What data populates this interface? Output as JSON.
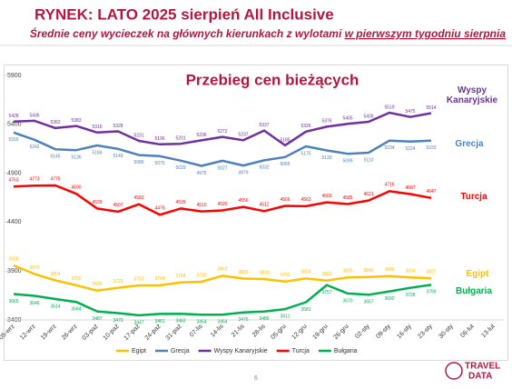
{
  "header": {
    "title": "RYNEK: LATO 2025 sierpień All Inclusive",
    "subtitle": "Średnie ceny wycieczek na głównych kierunkach z wylotami",
    "subtitle_emphasis": "w pierwszym tygodniu sierpnia"
  },
  "chart_data": {
    "type": "line",
    "title": "Przebieg cen bieżących",
    "categories": [
      "05-wrz",
      "12-wrz",
      "19-wrz",
      "26-wrz",
      "03-paź",
      "10-paź",
      "17-paź",
      "24-paź",
      "31-paź",
      "07-lis",
      "14-lis",
      "21-lis",
      "28-lis",
      "05-gru",
      "12-gru",
      "19-gru",
      "26-gru",
      "02-sty",
      "09-sty",
      "16-sty",
      "23-sty",
      "30-sty",
      "06-lut",
      "13-lut"
    ],
    "series": [
      {
        "name": "Egipt",
        "color": "#ffc000",
        "values": [
          3958,
          3870,
          3804,
          3755,
          3699,
          3729,
          3753,
          3754,
          3784,
          3790,
          3852,
          3823,
          3818,
          3792,
          3824,
          3802,
          3835,
          3840,
          3849,
          3834,
          3827,
          null,
          null,
          null
        ]
      },
      {
        "name": "Grecja",
        "color": "#4f81bd",
        "values": [
          5316,
          5242,
          5145,
          5136,
          5184,
          5149,
          5086,
          5075,
          5029,
          4975,
          5027,
          4979,
          5032,
          5065,
          5175,
          5133,
          5099,
          5110,
          5234,
          5224,
          5233,
          null,
          null,
          null
        ]
      },
      {
        "name": "Wyspy Kanaryjskie",
        "color": "#7030a0",
        "values": [
          5428,
          5436,
          5362,
          5383,
          5316,
          5328,
          5231,
          5196,
          5201,
          5236,
          5272,
          5237,
          5337,
          5185,
          5326,
          5376,
          5405,
          5426,
          5519,
          5475,
          5514,
          null,
          null,
          null
        ]
      },
      {
        "name": "Turcja",
        "color": "#ff0000",
        "values": [
          4763,
          4773,
          4775,
          4690,
          4539,
          4507,
          4583,
          4475,
          4539,
          4510,
          4520,
          4556,
          4512,
          4566,
          4563,
          4603,
          4585,
          4621,
          4716,
          4687,
          4647,
          null,
          null,
          null
        ]
      },
      {
        "name": "Bułgaria",
        "color": "#00b050",
        "values": [
          3665,
          3646,
          3614,
          3584,
          3487,
          3470,
          3447,
          3461,
          3463,
          3454,
          3454,
          3476,
          3486,
          3511,
          3581,
          3757,
          3670,
          3657,
          3692,
          3728,
          3759,
          null,
          null,
          null
        ]
      }
    ],
    "ylim": [
      3400,
      5900
    ],
    "yticks": [
      3400,
      3900,
      4400,
      4900,
      5400,
      5900
    ],
    "grid": false
  },
  "footer": {
    "page": "6",
    "logo_top": "TRAVEL",
    "logo_bottom": "DATA"
  }
}
